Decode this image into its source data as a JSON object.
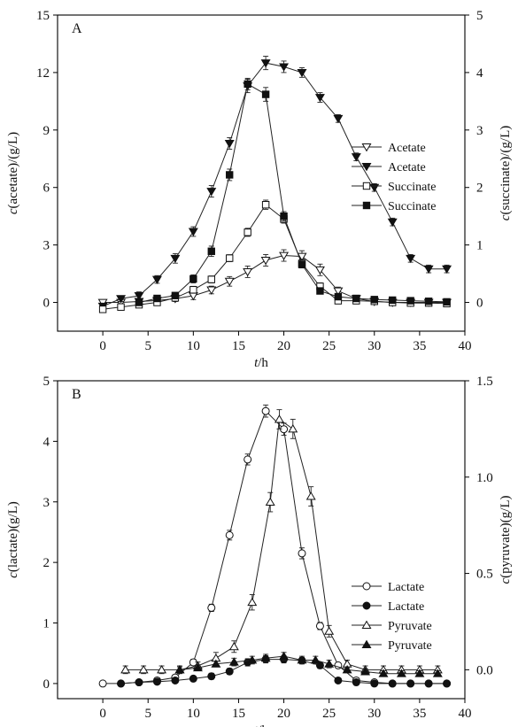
{
  "chart_data": [
    {
      "type": "line",
      "panel_label": "A",
      "xlabel_italic": "t",
      "xlabel_unit": "/h",
      "ylabel_left_italic": "c",
      "ylabel_left_rest": "(acetate)/(g/L)",
      "ylabel_right_italic": "c",
      "ylabel_right_rest": "(succinate)/(g/L)",
      "xlim": [
        -5,
        40
      ],
      "ylim_left": [
        -1.5,
        15
      ],
      "ylim_right": [
        -0.5,
        5
      ],
      "xticks": [
        0,
        5,
        10,
        15,
        20,
        25,
        30,
        35,
        40
      ],
      "yticks_left": [
        0,
        3,
        6,
        9,
        12,
        15
      ],
      "yticks_right": [
        0,
        1,
        2,
        3,
        4,
        5
      ],
      "legend_position": "right",
      "series": [
        {
          "name": "Acetate",
          "axis": "left",
          "marker": "triangle-down",
          "filled": false,
          "x": [
            0,
            2,
            4,
            6,
            8,
            10,
            12,
            14,
            16,
            18,
            20,
            22,
            24,
            26,
            28,
            30,
            32,
            34,
            36,
            38
          ],
          "y": [
            0.0,
            0.0,
            0.05,
            0.1,
            0.2,
            0.35,
            0.65,
            1.1,
            1.6,
            2.2,
            2.45,
            2.4,
            1.7,
            0.6,
            0.2,
            0.05,
            0.0,
            0.0,
            0.0,
            0.0
          ],
          "err": [
            0.1,
            0.1,
            0.1,
            0.1,
            0.15,
            0.2,
            0.2,
            0.25,
            0.3,
            0.3,
            0.3,
            0.3,
            0.3,
            0.2,
            0.1,
            0.1,
            0.1,
            0.1,
            0.1,
            0.1
          ]
        },
        {
          "name": "Acetate",
          "axis": "left",
          "marker": "triangle-down",
          "filled": true,
          "x": [
            0,
            2,
            4,
            6,
            8,
            10,
            12,
            14,
            16,
            18,
            20,
            22,
            24,
            26,
            28,
            30,
            32,
            34,
            36,
            38
          ],
          "y": [
            -0.2,
            0.2,
            0.35,
            1.2,
            2.3,
            3.7,
            5.8,
            8.3,
            11.3,
            12.5,
            12.3,
            12.0,
            10.7,
            9.6,
            7.6,
            6.0,
            4.2,
            2.3,
            1.75,
            1.75
          ],
          "err": [
            0.1,
            0.15,
            0.2,
            0.2,
            0.25,
            0.25,
            0.3,
            0.3,
            0.35,
            0.35,
            0.3,
            0.25,
            0.25,
            0.2,
            0.2,
            0.2,
            0.2,
            0.2,
            0.2,
            0.2
          ]
        },
        {
          "name": "Succinate",
          "axis": "right",
          "marker": "square",
          "filled": false,
          "x": [
            0,
            2,
            4,
            6,
            8,
            10,
            12,
            14,
            16,
            18,
            20,
            22,
            24,
            26,
            28,
            30,
            32,
            34,
            36,
            38
          ],
          "y": [
            -0.12,
            -0.08,
            -0.04,
            0.0,
            0.08,
            0.22,
            0.4,
            0.77,
            1.22,
            1.7,
            1.45,
            0.68,
            0.28,
            0.03,
            0.03,
            0.02,
            0.0,
            -0.01,
            -0.01,
            -0.02
          ],
          "err": [
            0.04,
            0.04,
            0.04,
            0.04,
            0.05,
            0.06,
            0.06,
            0.06,
            0.07,
            0.08,
            0.07,
            0.07,
            0.06,
            0.04,
            0.04,
            0.04,
            0.04,
            0.04,
            0.04,
            0.04
          ]
        },
        {
          "name": "Succinate",
          "axis": "right",
          "marker": "square",
          "filled": true,
          "x": [
            4,
            6,
            8,
            10,
            12,
            14,
            16,
            18,
            20,
            22,
            24,
            26,
            28,
            30,
            32,
            34,
            36,
            38
          ],
          "y": [
            0.0,
            0.07,
            0.12,
            0.41,
            0.89,
            2.22,
            3.8,
            3.62,
            1.5,
            0.66,
            0.2,
            0.1,
            0.07,
            0.05,
            0.04,
            0.03,
            0.02,
            0.01
          ],
          "err": [
            0.04,
            0.04,
            0.05,
            0.07,
            0.09,
            0.1,
            0.1,
            0.12,
            0.08,
            0.06,
            0.05,
            0.04,
            0.04,
            0.04,
            0.04,
            0.04,
            0.04,
            0.04
          ]
        }
      ]
    },
    {
      "type": "line",
      "panel_label": "B",
      "xlabel_italic": "t",
      "xlabel_unit": "/h",
      "ylabel_left_italic": "c",
      "ylabel_left_rest": "(lactate)(g/L)",
      "ylabel_right_italic": "c",
      "ylabel_right_rest": "(pyruvate)(g/L)",
      "xlim": [
        -5,
        40
      ],
      "ylim_left": [
        -0.25,
        5
      ],
      "ylim_right": [
        -0.15,
        1.5
      ],
      "xticks": [
        0,
        5,
        10,
        15,
        20,
        25,
        30,
        35,
        40
      ],
      "yticks_left": [
        0,
        1,
        2,
        3,
        4,
        5
      ],
      "yticks_right": [
        0.0,
        0.5,
        1.0,
        1.5
      ],
      "right_tick_labels": [
        "0.0",
        "0.5",
        "1.0",
        "1.5"
      ],
      "legend_position": "right",
      "series": [
        {
          "name": "Lactate",
          "axis": "left",
          "marker": "circle",
          "filled": false,
          "x": [
            0,
            2,
            4,
            6,
            8,
            10,
            12,
            14,
            16,
            18,
            20,
            22,
            24,
            26,
            28,
            30,
            32,
            34,
            36,
            38
          ],
          "y": [
            0.0,
            0.0,
            0.02,
            0.05,
            0.1,
            0.35,
            1.25,
            2.45,
            3.7,
            4.5,
            4.2,
            2.15,
            0.95,
            0.3,
            0.05,
            0.02,
            0.0,
            0.0,
            0.0,
            0.0
          ],
          "err": [
            0.03,
            0.03,
            0.03,
            0.03,
            0.04,
            0.05,
            0.06,
            0.08,
            0.09,
            0.1,
            0.1,
            0.09,
            0.06,
            0.04,
            0.03,
            0.03,
            0.03,
            0.03,
            0.03,
            0.03
          ]
        },
        {
          "name": "Lactate",
          "axis": "left",
          "marker": "circle",
          "filled": true,
          "x": [
            2,
            4,
            6,
            8,
            10,
            12,
            14,
            16,
            18,
            20,
            22,
            24,
            26,
            28,
            30,
            32,
            34,
            36,
            38
          ],
          "y": [
            0.0,
            0.02,
            0.03,
            0.05,
            0.08,
            0.12,
            0.2,
            0.35,
            0.4,
            0.4,
            0.38,
            0.3,
            0.05,
            0.02,
            0.0,
            0.0,
            0.0,
            0.0,
            0.0
          ],
          "err": [
            0.02,
            0.02,
            0.03,
            0.03,
            0.04,
            0.05,
            0.05,
            0.06,
            0.06,
            0.06,
            0.05,
            0.05,
            0.03,
            0.02,
            0.02,
            0.02,
            0.02,
            0.02,
            0.02
          ]
        },
        {
          "name": "Pyruvate",
          "axis": "right",
          "marker": "triangle-up",
          "filled": false,
          "x": [
            2.5,
            4.5,
            6.5,
            8.5,
            10.5,
            12.5,
            14.5,
            16.5,
            18.5,
            19.5,
            21,
            23,
            25,
            27,
            29,
            31,
            33,
            35,
            37
          ],
          "y": [
            0.0,
            0.0,
            0.0,
            0.0,
            0.02,
            0.06,
            0.12,
            0.35,
            0.87,
            1.3,
            1.25,
            0.9,
            0.2,
            0.03,
            0.0,
            0.0,
            0.0,
            0.0,
            0.0
          ],
          "err": [
            0.02,
            0.02,
            0.02,
            0.02,
            0.02,
            0.03,
            0.03,
            0.04,
            0.05,
            0.05,
            0.05,
            0.05,
            0.03,
            0.02,
            0.02,
            0.02,
            0.02,
            0.02,
            0.02
          ]
        },
        {
          "name": "Pyruvate",
          "axis": "right",
          "marker": "triangle-up",
          "filled": true,
          "x": [
            8.5,
            10.5,
            12.5,
            14.5,
            16.5,
            18,
            20,
            22,
            23.5,
            25,
            27,
            29,
            31,
            33,
            35,
            37
          ],
          "y": [
            0.0,
            0.01,
            0.03,
            0.04,
            0.05,
            0.06,
            0.07,
            0.05,
            0.05,
            0.03,
            0.0,
            -0.01,
            -0.02,
            -0.02,
            -0.02,
            -0.02
          ],
          "err": [
            0.015,
            0.015,
            0.015,
            0.02,
            0.02,
            0.02,
            0.02,
            0.02,
            0.02,
            0.02,
            0.015,
            0.015,
            0.015,
            0.015,
            0.015,
            0.015
          ]
        }
      ]
    }
  ]
}
